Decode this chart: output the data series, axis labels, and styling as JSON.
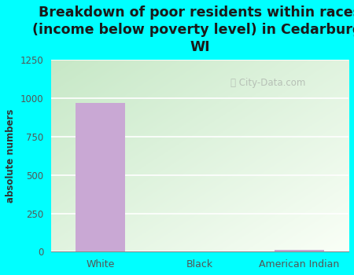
{
  "categories": [
    "White",
    "Black",
    "American Indian"
  ],
  "values": [
    970,
    0,
    13
  ],
  "bar_color": "#c9a8d4",
  "background_color": "#00ffff",
  "title": "Breakdown of poor residents within races\n(income below poverty level) in Cedarburg,\nWI",
  "ylabel": "absolute numbers",
  "ylim": [
    0,
    1250
  ],
  "yticks": [
    0,
    250,
    500,
    750,
    1000,
    1250
  ],
  "title_fontsize": 12.5,
  "title_color": "#1a1a1a",
  "axis_label_color": "#333333",
  "tick_color": "#555555",
  "watermark": "City-Data.com",
  "watermark_icon": "ⓘ",
  "grid_color": "#ffffff",
  "plot_gradient_colors": [
    "#c5e8c5",
    "#f8fdf5"
  ],
  "bar_width": 0.5
}
